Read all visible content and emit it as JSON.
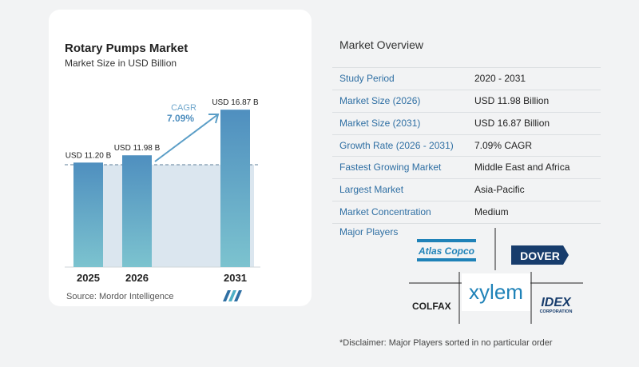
{
  "chart": {
    "title": "Rotary Pumps Market",
    "subtitle": "Market Size in USD Billion",
    "source": "Source:  Mordor Intelligence",
    "cagr_label": "CAGR",
    "cagr_value": "7.09%"
  },
  "chart_data": {
    "type": "bar",
    "categories": [
      "2025",
      "2026",
      "2031"
    ],
    "values": [
      11.2,
      11.98,
      16.87
    ],
    "data_labels": [
      "USD 11.20 B",
      "USD 11.98 B",
      "USD 16.87 B"
    ],
    "ylim": [
      0,
      18
    ],
    "bar_colors": [
      "#4f8fbf",
      "#6fb5cc"
    ]
  },
  "overview": {
    "title": "Market Overview",
    "rows": [
      {
        "label": "Study Period",
        "value": "2020 - 2031"
      },
      {
        "label": "Market Size (2026)",
        "value": "USD 11.98 Billion"
      },
      {
        "label": "Market Size (2031)",
        "value": "USD 16.87 Billion"
      },
      {
        "label": "Growth Rate (2026 - 2031)",
        "value": "7.09% CAGR"
      },
      {
        "label": "Fastest Growing Market",
        "value": "Middle East and Africa"
      },
      {
        "label": "Largest Market",
        "value": "Asia-Pacific"
      },
      {
        "label": "Market Concentration",
        "value": "Medium"
      }
    ]
  },
  "players": {
    "title": "Major Players",
    "logos": [
      "Atlas Copco",
      "DOVER",
      "COLFAX",
      "xylem",
      "IDEX",
      "CORPORATION"
    ]
  },
  "disclaimer": "*Disclaimer: Major Players sorted in no particular order"
}
